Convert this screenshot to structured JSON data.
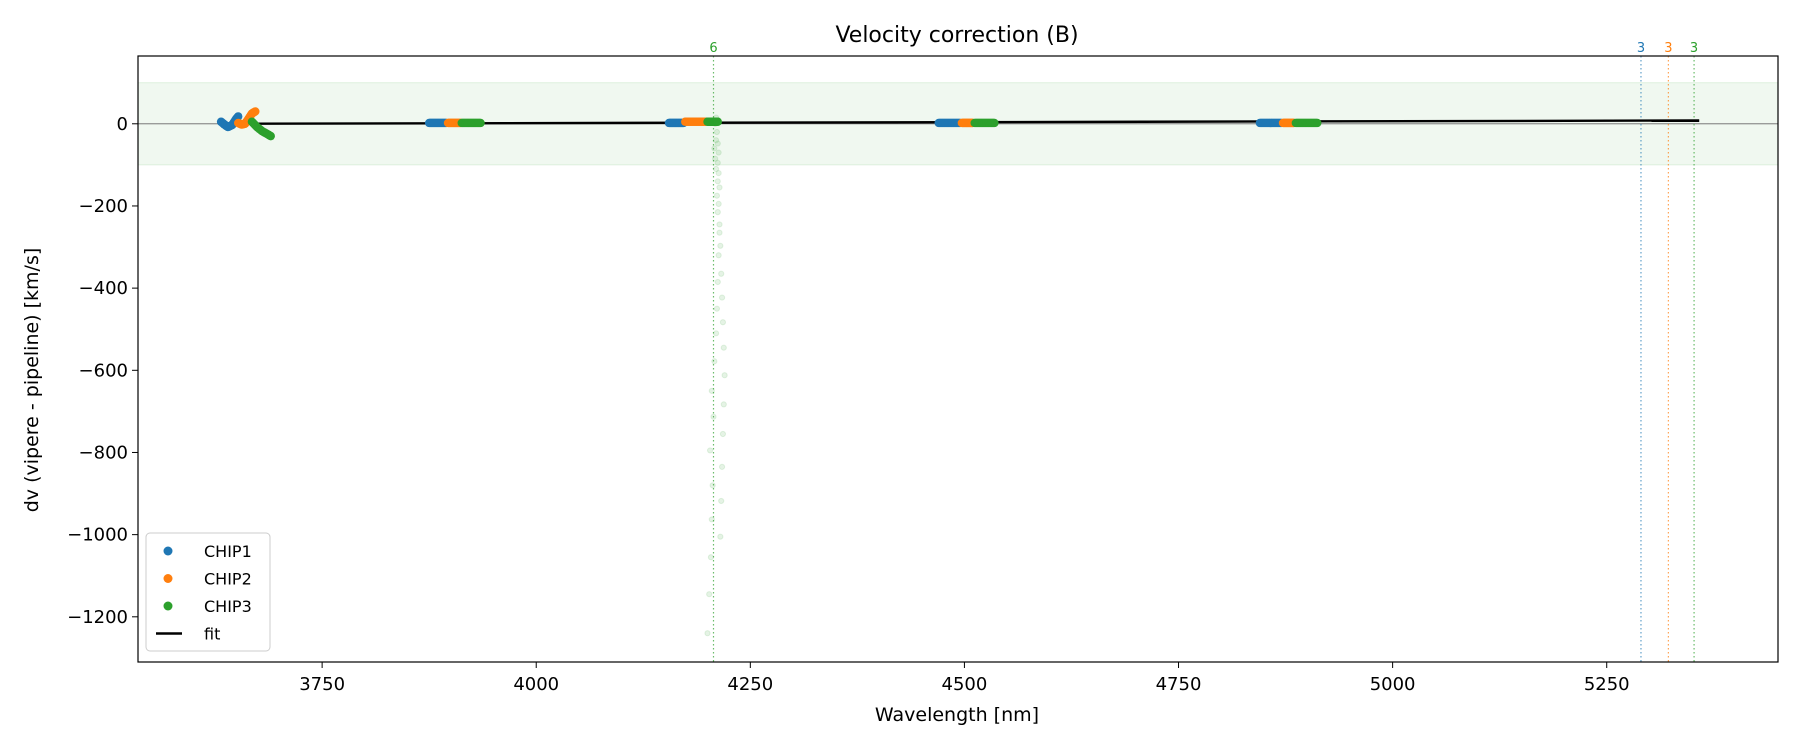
{
  "chart_data": {
    "type": "scatter",
    "title": "Velocity correction (B)",
    "xlabel": "Wavelength [nm]",
    "ylabel": "dv (vipere - pipeline) [km/s]",
    "xlim": [
      3535,
      5450
    ],
    "ylim": [
      -1310,
      165
    ],
    "xticks": [
      3750,
      4000,
      4250,
      4500,
      4750,
      5000,
      5250
    ],
    "yticks": [
      0,
      -200,
      -400,
      -600,
      -800,
      -1000,
      -1200
    ],
    "grid": false,
    "legend_position": "lower-left",
    "band": {
      "ymin": -100,
      "ymax": 100,
      "color": "#2ca02c"
    },
    "zero_line": 0,
    "colors": {
      "CHIP1": "#1f77b4",
      "CHIP2": "#ff7f0e",
      "CHIP3": "#2ca02c",
      "fit": "#000000"
    },
    "series": [
      {
        "name": "CHIP1",
        "color": "#1f77b4",
        "clusters": [
          {
            "points": [
              [
                3632,
                5
              ],
              [
                3636,
                -2
              ],
              [
                3640,
                -8
              ],
              [
                3645,
                -3
              ],
              [
                3649,
                10
              ],
              [
                3652,
                18
              ]
            ]
          },
          {
            "x_range": [
              3875,
              3895
            ],
            "y": 2
          },
          {
            "x_range": [
              4155,
              4172
            ],
            "y": 2
          },
          {
            "x_range": [
              4470,
              4495
            ],
            "y": 2
          },
          {
            "x_range": [
              4845,
              4870
            ],
            "y": 2
          }
        ]
      },
      {
        "name": "CHIP2",
        "color": "#ff7f0e",
        "clusters": [
          {
            "points": [
              [
                3652,
                2
              ],
              [
                3656,
                -2
              ],
              [
                3660,
                0
              ],
              [
                3664,
                12
              ],
              [
                3668,
                25
              ],
              [
                3672,
                30
              ]
            ]
          },
          {
            "x_range": [
              3897,
              3912
            ],
            "y": 2
          },
          {
            "x_range": [
              4174,
              4198
            ],
            "y": 5
          },
          {
            "x_range": [
              4497,
              4510
            ],
            "y": 2
          },
          {
            "x_range": [
              4872,
              4885
            ],
            "y": 2
          }
        ]
      },
      {
        "name": "CHIP3",
        "color": "#2ca02c",
        "clusters": [
          {
            "points": [
              [
                3668,
                5
              ],
              [
                3674,
                -8
              ],
              [
                3680,
                -18
              ],
              [
                3686,
                -25
              ],
              [
                3690,
                -30
              ]
            ]
          },
          {
            "x_range": [
              3913,
              3935
            ],
            "y": 2
          },
          {
            "x_range": [
              4200,
              4212
            ],
            "y": 5
          },
          {
            "x_range": [
              4512,
              4535
            ],
            "y": 2
          },
          {
            "x_range": [
              4887,
              4912
            ],
            "y": 2
          }
        ],
        "outliers": [
          [
            4200,
            -1240
          ],
          [
            4202,
            -1145
          ],
          [
            4204,
            -1055
          ],
          [
            4205,
            -963
          ],
          [
            4206,
            -880
          ],
          [
            4203,
            -795
          ],
          [
            4207,
            -713
          ],
          [
            4205,
            -650
          ],
          [
            4208,
            -578
          ],
          [
            4210,
            -510
          ],
          [
            4211,
            -450
          ],
          [
            4212,
            -385
          ],
          [
            4213,
            -320
          ],
          [
            4214,
            -265
          ],
          [
            4212,
            -215
          ],
          [
            4211,
            -175
          ],
          [
            4212,
            -140
          ],
          [
            4210,
            -110
          ],
          [
            4209,
            -85
          ],
          [
            4208,
            -60
          ],
          [
            4210,
            -40
          ],
          [
            4211,
            -20
          ],
          [
            4209,
            0
          ],
          [
            4210,
            15
          ],
          [
            4215,
            -1005
          ],
          [
            4216,
            -918
          ],
          [
            4217,
            -835
          ],
          [
            4218,
            -755
          ],
          [
            4219,
            -683
          ],
          [
            4220,
            -612
          ],
          [
            4219,
            -545
          ],
          [
            4218,
            -483
          ],
          [
            4217,
            -423
          ],
          [
            4216,
            -365
          ],
          [
            4215,
            -297
          ],
          [
            4214,
            -245
          ],
          [
            4213,
            -195
          ],
          [
            4214,
            -155
          ],
          [
            4213,
            -120
          ],
          [
            4212,
            -95
          ],
          [
            4213,
            -70
          ],
          [
            4212,
            -48
          ]
        ]
      }
    ],
    "fit": {
      "name": "fit",
      "x": [
        3632,
        5358
      ],
      "y": [
        0,
        8
      ]
    },
    "vlines": [
      {
        "x": 4207,
        "color": "#2ca02c",
        "label": "6"
      },
      {
        "x": 5290,
        "color": "#1f77b4",
        "label": "3"
      },
      {
        "x": 5322,
        "color": "#ff7f0e",
        "label": "3"
      },
      {
        "x": 5352,
        "color": "#2ca02c",
        "label": "3"
      }
    ],
    "legend": [
      "CHIP1",
      "CHIP2",
      "CHIP3",
      "fit"
    ]
  }
}
